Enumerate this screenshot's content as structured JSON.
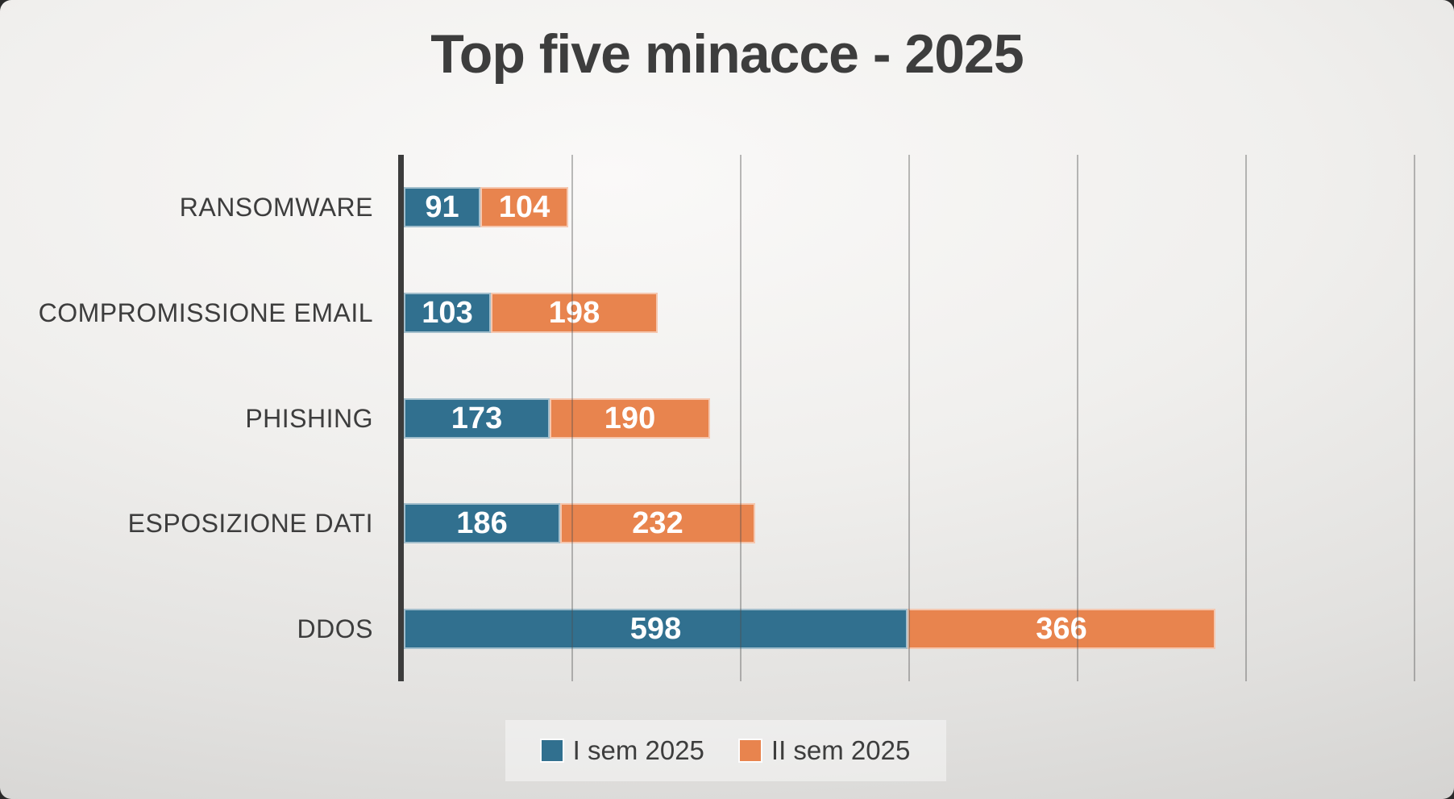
{
  "chart_data": {
    "type": "bar",
    "orientation": "horizontal-stacked",
    "title": "Top five minacce - 2025",
    "categories": [
      "RANSOMWARE",
      "COMPROMISSIONE EMAIL",
      "PHISHING",
      "ESPOSIZIONE DATI",
      "DDOS"
    ],
    "series": [
      {
        "name": "I sem 2025",
        "color": "#31708F",
        "values": [
          91,
          103,
          173,
          186,
          598
        ]
      },
      {
        "name": "II sem 2025",
        "color": "#E8844E",
        "values": [
          104,
          198,
          190,
          232,
          366
        ]
      }
    ],
    "xlim": [
      0,
      1200
    ],
    "gridline_interval": 200,
    "grid": "vertical-on",
    "legend_position": "bottom-center",
    "colors": {
      "title_text": "#3d3d3d",
      "category_text": "#3d3d3d",
      "value_text": "#ffffff",
      "axis_line": "#3c3c3c",
      "gridline": "#8a8a8a"
    }
  }
}
